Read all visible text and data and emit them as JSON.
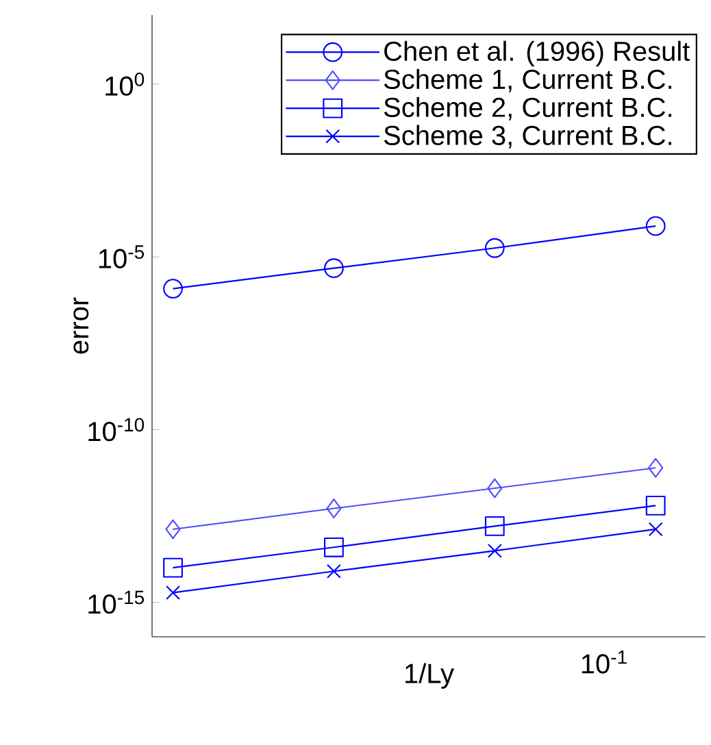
{
  "chart_data": {
    "type": "line",
    "xlabel": "1/Ly",
    "ylabel": "error",
    "log": "y",
    "categories": [
      null,
      null,
      null,
      null
    ],
    "annotations": [
      "10$^{-1}$"
    ],
    "ylim": [
      1e-16,
      100
    ],
    "yticks": [
      {
        "value": 1e-15,
        "label": "10$^{-15}$"
      },
      {
        "value": 1e-10,
        "label": "10$^{-10}$"
      },
      {
        "value": 1e-05,
        "label": "10$^{-5}$"
      },
      {
        "value": 1,
        "label": "10$^{0}$"
      }
    ],
    "grid": false,
    "legend": "top right",
    "line_style": "solid",
    "series": [
      {
        "name": "Chen et al. (1996) Result",
        "color": "#0000ff",
        "marker": "circle",
        "values": [
          1.2e-06,
          4.7e-06,
          1.8e-05,
          7.8e-05
        ]
      },
      {
        "name": "Scheme 1, Current B.C.",
        "color": "#4d4dff",
        "marker": "diamond",
        "values": [
          1.3e-13,
          5.2e-13,
          2e-12,
          7.8e-12
        ]
      },
      {
        "name": "Scheme 2, Current B.C.",
        "color": "#0000ff",
        "marker": "square",
        "values": [
          1e-14,
          3.9e-14,
          1.6e-13,
          6.3e-13
        ]
      },
      {
        "name": "Scheme 3, Current B.C.",
        "color": "#0000ff",
        "marker": "cross",
        "values": [
          1.9e-15,
          7.9e-15,
          3.1e-14,
          1.3e-13
        ]
      }
    ]
  }
}
